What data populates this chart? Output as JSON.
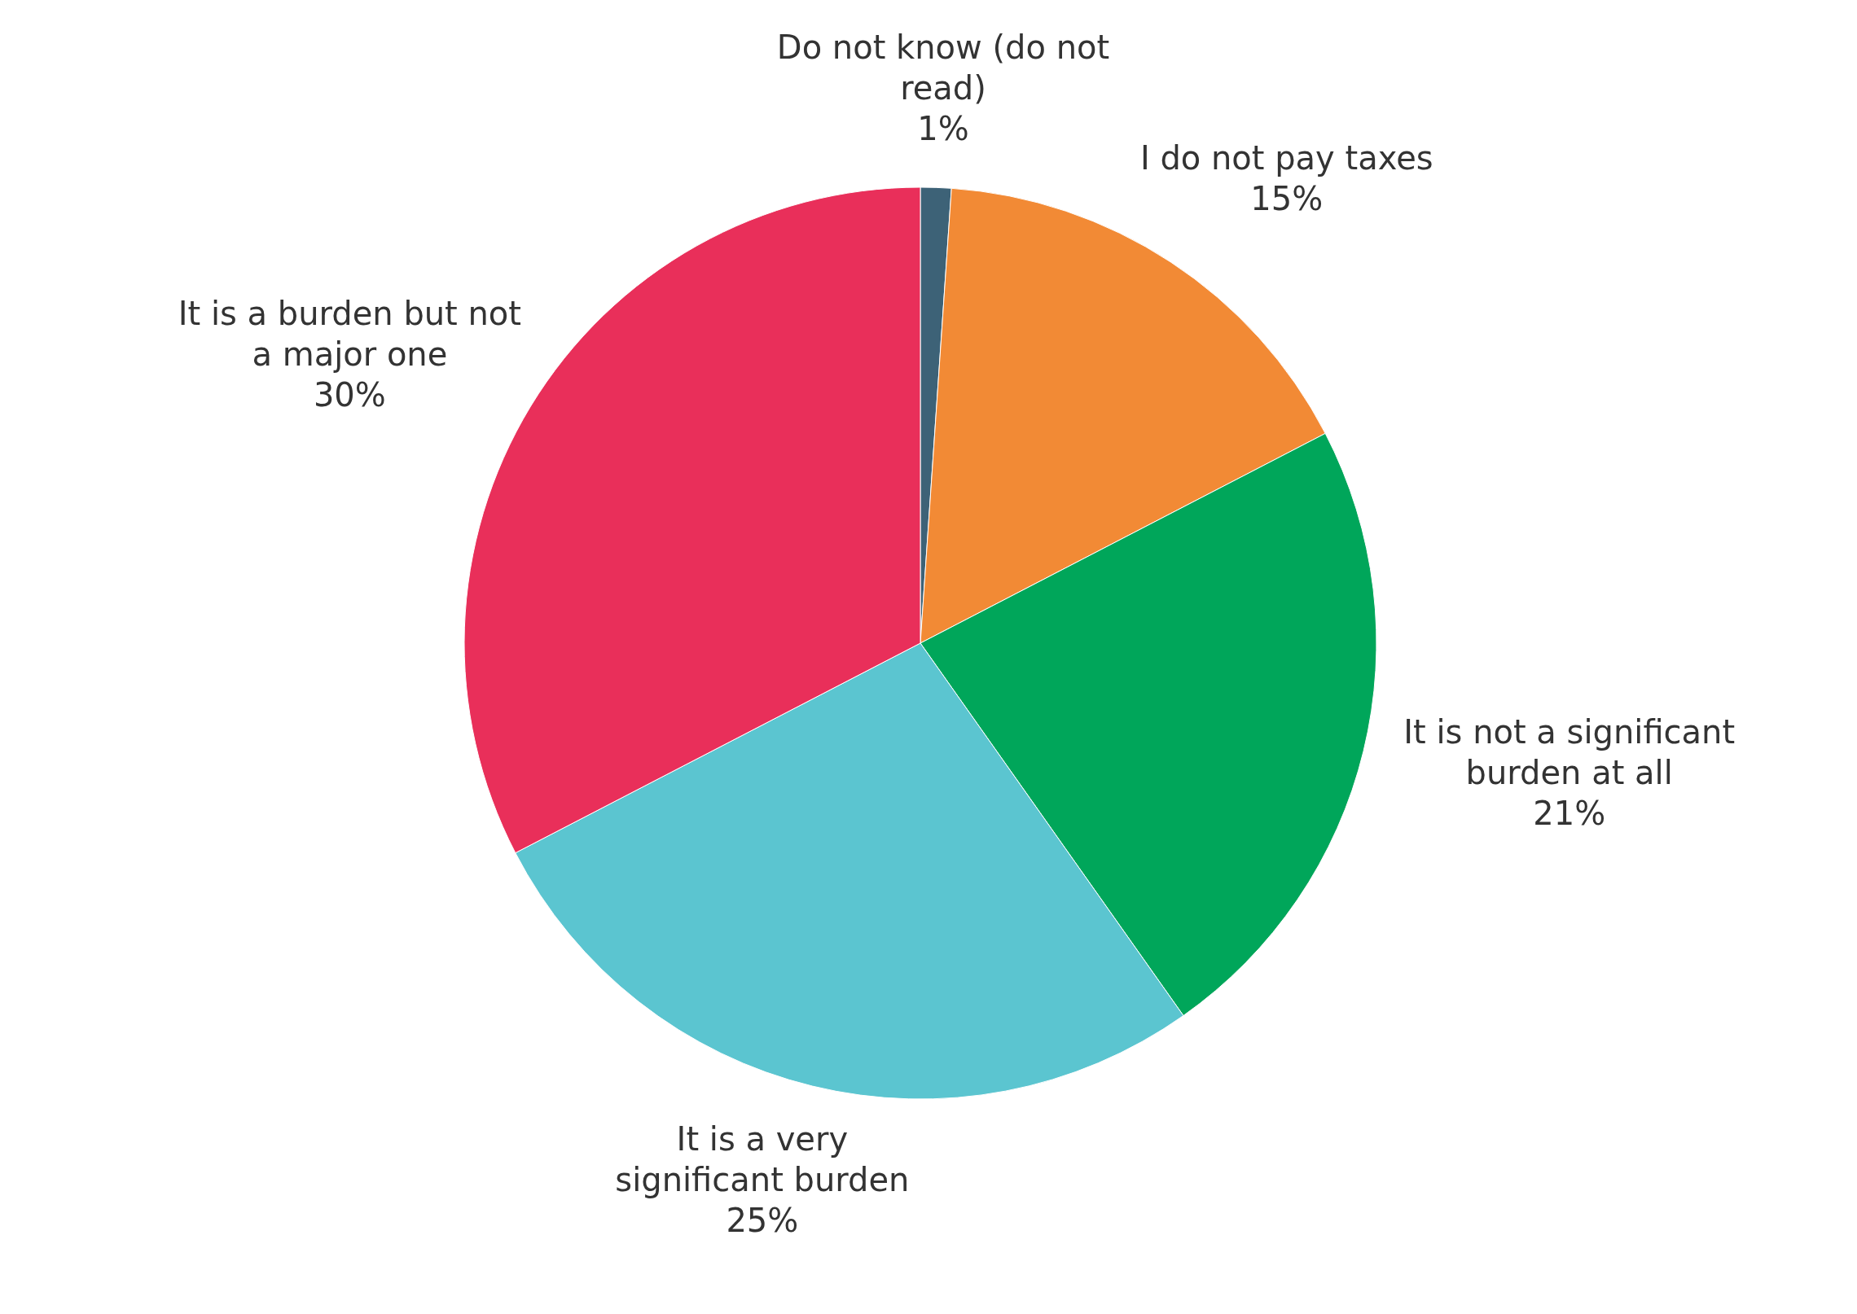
{
  "chart_data": {
    "type": "pie",
    "categories": [
      "Do not know (do not read)",
      "I do not pay taxes",
      "It is not a significant burden at all",
      "It is a very significant burden",
      "It is a burden but not a major one"
    ],
    "values": [
      1,
      15,
      21,
      25,
      30
    ],
    "value_labels": [
      "1%",
      "15%",
      "21%",
      "25%",
      "30%"
    ],
    "colors": [
      "#3d6277",
      "#f28a35",
      "#00a65a",
      "#5bc5d0",
      "#e92f5a"
    ],
    "legend": false
  }
}
